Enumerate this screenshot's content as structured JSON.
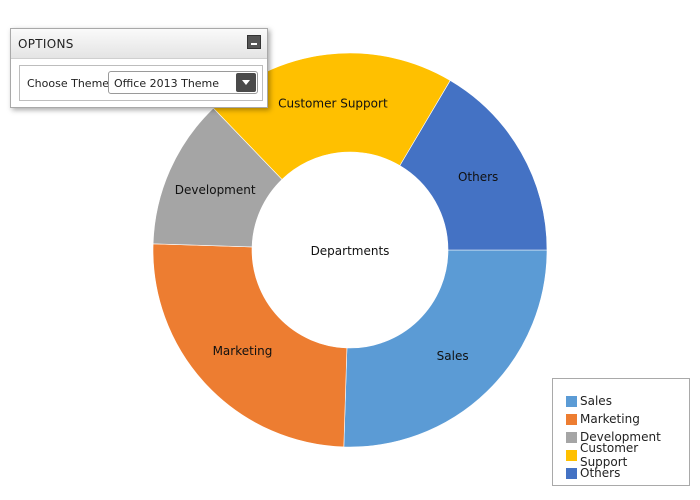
{
  "options": {
    "title": "OPTIONS",
    "theme_label": "Choose Theme:",
    "theme_value": "Office 2013 Theme"
  },
  "chart_data": {
    "type": "pie",
    "center_label": "Departments",
    "legend_position": "bottom-right",
    "slices": [
      {
        "label": "Sales",
        "value": 25.5,
        "color": "#5B9BD5"
      },
      {
        "label": "Marketing",
        "value": 25.0,
        "color": "#ED7D31"
      },
      {
        "label": "Development",
        "value": 12.3,
        "color": "#A5A5A5"
      },
      {
        "label": "Customer Support",
        "value": 20.7,
        "color": "#FFC000"
      },
      {
        "label": "Others",
        "value": 16.5,
        "color": "#4472C4"
      }
    ]
  }
}
